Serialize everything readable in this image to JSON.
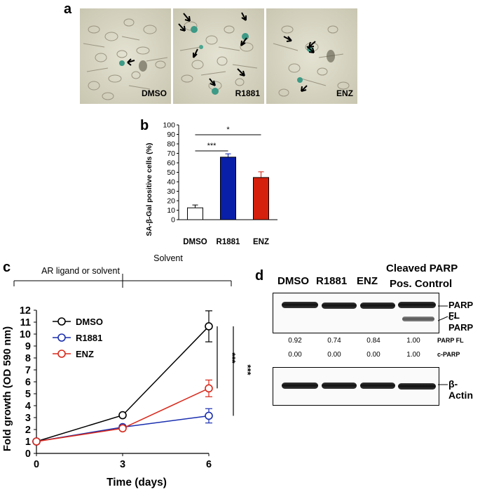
{
  "panel_labels": {
    "a": "a",
    "b": "b",
    "c": "c",
    "d": "d"
  },
  "panel_a": {
    "images": [
      {
        "label": "DMSO"
      },
      {
        "label": "R1881"
      },
      {
        "label": "ENZ"
      }
    ]
  },
  "panel_b": {
    "ylabel": "SA-β-Gal positive cells (%)",
    "significance": [
      "***",
      "*"
    ]
  },
  "panel_c": {
    "phase_labels": [
      "AR ligand or solvent",
      "Solvent"
    ],
    "significance": [
      "***",
      "***"
    ]
  },
  "panel_d": {
    "lanes": [
      "DMSO",
      "R1881",
      "ENZ",
      "Cleaved PARP",
      "Pos. Control"
    ],
    "band_labels": [
      "PARP FL",
      "c-PARP",
      "β-Actin"
    ],
    "quant_row_labels": [
      "PARP FL",
      "c-PARP"
    ],
    "parp_fl": [
      "0.92",
      "0.74",
      "0.84",
      "1.00"
    ],
    "c_parp": [
      "0.00",
      "0.00",
      "0.00",
      "1.00"
    ]
  },
  "chart_data": [
    {
      "type": "bar",
      "categories": [
        "DMSO",
        "R1881",
        "ENZ"
      ],
      "values": [
        12.5,
        66,
        44.5
      ],
      "errors": [
        3,
        3.5,
        6
      ],
      "colors": [
        "#ffffff",
        "#0a1fa8",
        "#d4200c"
      ],
      "title": "",
      "xlabel": "",
      "ylabel": "SA-β-Gal positive cells (%)",
      "ylim": [
        0,
        100
      ],
      "yticks": [
        "0",
        "10",
        "20",
        "30",
        "40",
        "50",
        "60",
        "70",
        "80",
        "90",
        "100"
      ]
    },
    {
      "type": "line",
      "x": [
        0,
        3,
        6
      ],
      "xticks": [
        "0",
        "3",
        "6"
      ],
      "xlabel": "Time (days)",
      "ylabel": "Fold growth (OD 590 nm)",
      "ylim": [
        0,
        12
      ],
      "yticks": [
        "0",
        "1",
        "2",
        "3",
        "4",
        "5",
        "6",
        "7",
        "8",
        "9",
        "10",
        "11",
        "12"
      ],
      "legend_position": "top-left",
      "series": [
        {
          "name": "DMSO",
          "color": "#000000",
          "values": [
            1,
            3.2,
            10.65
          ],
          "errors": [
            0,
            0.1,
            1.3
          ]
        },
        {
          "name": "R1881",
          "color": "#1a2fb0",
          "values": [
            1,
            2.2,
            3.15
          ],
          "errors": [
            0,
            0.05,
            0.6
          ]
        },
        {
          "name": "ENZ",
          "color": "#d8281a",
          "values": [
            1,
            2.1,
            5.45
          ],
          "errors": [
            0,
            0.05,
            0.7
          ]
        }
      ]
    }
  ]
}
